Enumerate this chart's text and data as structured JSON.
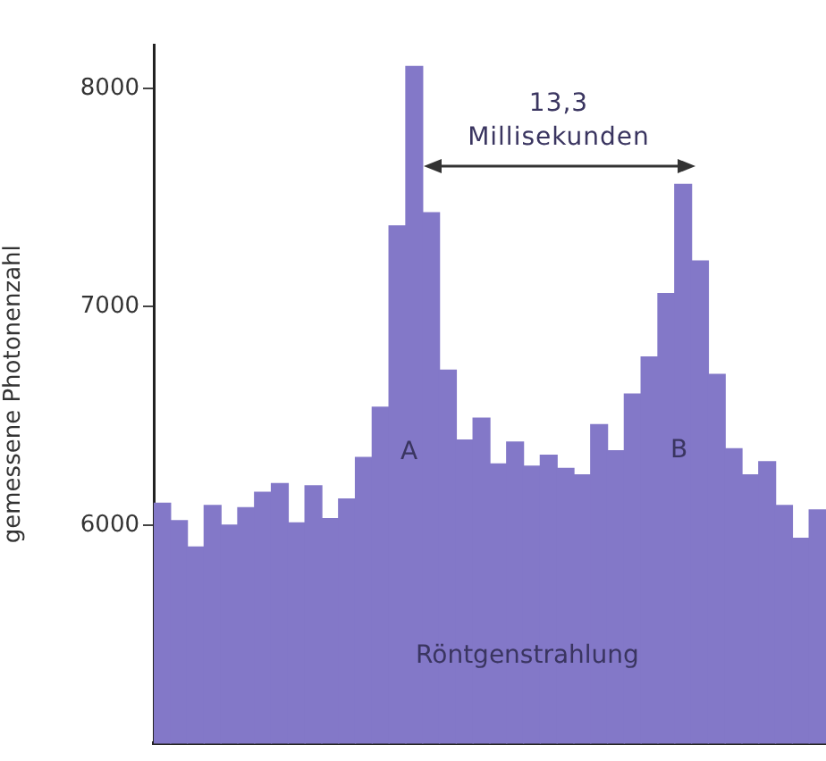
{
  "chart_data": {
    "type": "bar",
    "ylabel": "gemessene Photonenzahl",
    "categories": [
      null,
      null,
      null,
      null,
      null,
      null,
      null,
      null,
      null,
      null,
      null,
      null,
      null,
      null,
      null,
      null,
      null,
      null,
      null,
      null,
      null,
      null,
      null,
      null,
      null,
      null,
      null,
      null,
      null,
      null,
      null,
      null,
      null,
      null,
      null,
      null,
      null,
      null,
      null,
      null
    ],
    "values": [
      6100,
      6020,
      5900,
      6090,
      6000,
      6080,
      6150,
      6190,
      6010,
      6180,
      6030,
      6120,
      6310,
      6540,
      7370,
      8100,
      7430,
      6710,
      6390,
      6490,
      6280,
      6380,
      6270,
      6320,
      6260,
      6230,
      6460,
      6340,
      6600,
      6770,
      7060,
      7560,
      7210,
      6690,
      6350,
      6230,
      6290,
      6090,
      5940,
      6070
    ],
    "color": "#8378c8",
    "ylim": [
      5000,
      8200
    ],
    "yticks": [
      6000,
      7000,
      8000
    ],
    "grid": false,
    "annotations": [
      "13,3 Millisekunden",
      "A",
      "B",
      "Röntgenstrahlung"
    ]
  }
}
